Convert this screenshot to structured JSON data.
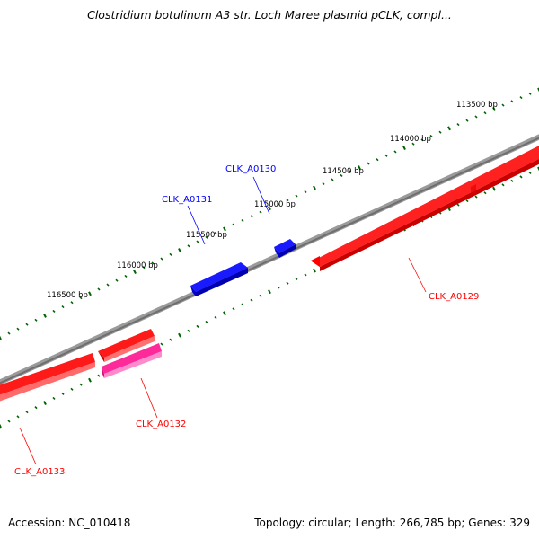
{
  "title": "Clostridium botulinum A3 str. Loch Maree plasmid pCLK, compl...",
  "footer": {
    "accession_label": "Accession:",
    "accession": "NC_010418",
    "topology_label": "Topology:",
    "topology": "circular;",
    "length_label": "Length:",
    "length": "266,785 bp;",
    "genes_label": "Genes:",
    "genes": "329"
  },
  "ruler": {
    "labels": [
      "113500 bp",
      "114000 bp",
      "114500 bp",
      "115000 bp",
      "115500 bp",
      "116000 bp",
      "116500 bp"
    ]
  },
  "colors": {
    "backbone": "#808080",
    "forward_gene": "#0000ff",
    "reverse_gene": "#ff0000",
    "highlight_gene": "#ff2a9a",
    "tick": "#006400"
  },
  "genes": [
    {
      "id": "CLK_A0129",
      "strand": "reverse",
      "color": "#ff0000"
    },
    {
      "id": "CLK_A0130",
      "strand": "forward",
      "color": "#0000ff"
    },
    {
      "id": "CLK_A0131",
      "strand": "forward",
      "color": "#0000ff"
    },
    {
      "id": "CLK_A0132",
      "strand": "reverse",
      "color": "#ff2a9a"
    },
    {
      "id": "CLK_A0133",
      "strand": "reverse",
      "color": "#ff0000"
    }
  ]
}
